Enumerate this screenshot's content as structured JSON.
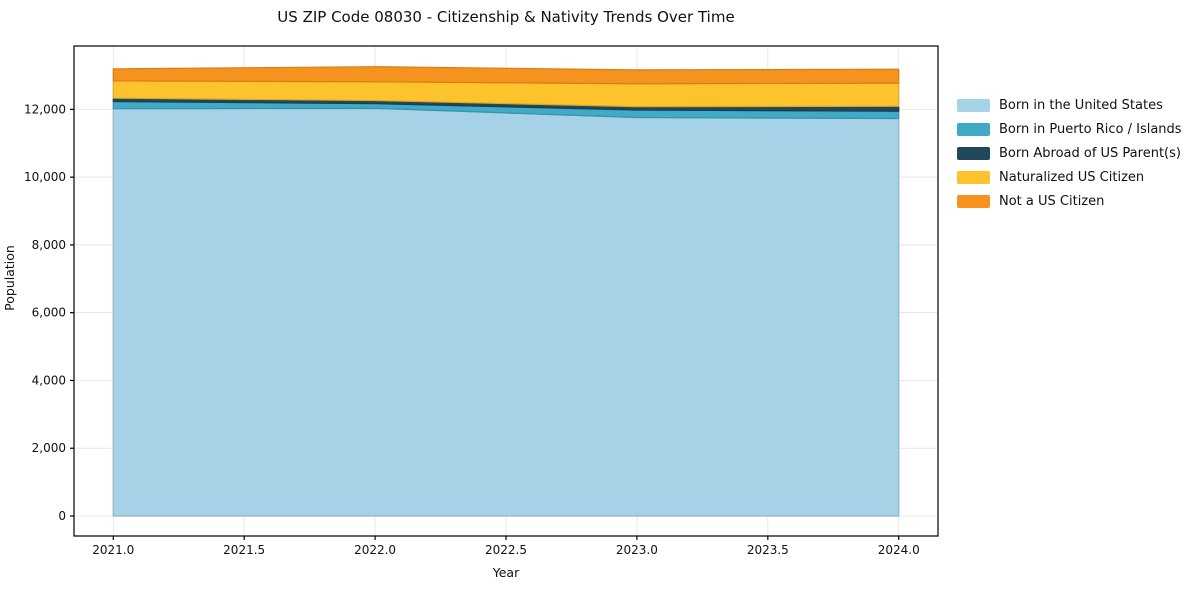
{
  "chart_data": {
    "type": "area",
    "stacked": true,
    "title": "US ZIP Code 08030 - Citizenship & Nativity Trends Over Time",
    "xlabel": "Year",
    "ylabel": "Population",
    "x": [
      2021,
      2022,
      2023,
      2024
    ],
    "series": [
      {
        "name": "Born in the United States",
        "color": "#A6D2E7",
        "values": [
          12020,
          12030,
          11760,
          11730
        ]
      },
      {
        "name": "Born in Puerto Rico / Islands",
        "color": "#41AAC6",
        "values": [
          210,
          140,
          220,
          215
        ]
      },
      {
        "name": "Born Abroad of US Parent(s)",
        "color": "#20485A",
        "values": [
          100,
          90,
          100,
          145
        ]
      },
      {
        "name": "Naturalized US Citizen",
        "color": "#FCC32D",
        "values": [
          510,
          555,
          675,
          685
        ]
      },
      {
        "name": "Not a US Citizen",
        "color": "#F6931E",
        "values": [
          355,
          445,
          410,
          410
        ]
      }
    ],
    "xlim": [
      2020.85,
      2024.15
    ],
    "ylim": [
      -590,
      13870
    ],
    "xticks": [
      2021.0,
      2021.5,
      2022.0,
      2022.5,
      2023.0,
      2023.5,
      2024.0
    ],
    "xtick_labels": [
      "2021.0",
      "2021.5",
      "2022.0",
      "2022.5",
      "2023.0",
      "2023.5",
      "2024.0"
    ],
    "yticks": [
      0,
      2000,
      4000,
      6000,
      8000,
      10000,
      12000
    ],
    "ytick_labels": [
      "0",
      "2,000",
      "4,000",
      "6,000",
      "8,000",
      "10,000",
      "12,000"
    ],
    "grid": true,
    "legend_position": "right",
    "colors": {
      "grid": "#e8e8e8",
      "spine": "#000000",
      "text": "#111111"
    }
  }
}
